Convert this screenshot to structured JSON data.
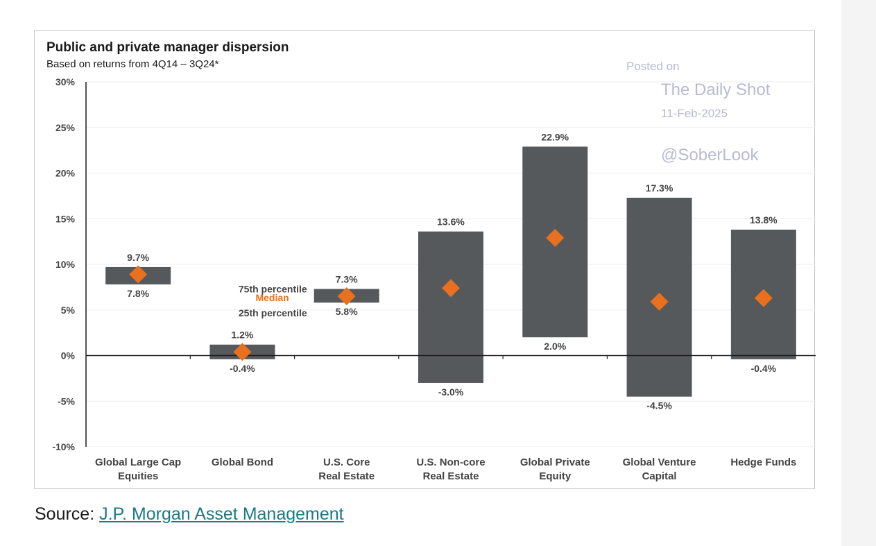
{
  "chart_data": {
    "type": "floating-bar",
    "title": "Public and private manager dispersion",
    "subtitle": "Based on returns from 4Q14 – 3Q24*",
    "ylim": [
      -10,
      30
    ],
    "yticks": [
      30,
      25,
      20,
      15,
      10,
      5,
      0,
      -5,
      -10
    ],
    "ytick_labels": [
      "30%",
      "25%",
      "20%",
      "15%",
      "10%",
      "5%",
      "0%",
      "-5%",
      "-10%"
    ],
    "grid": true,
    "categories": [
      [
        "Global Large Cap",
        "Equities"
      ],
      [
        "Global Bond"
      ],
      [
        "U.S. Core",
        "Real Estate"
      ],
      [
        "U.S. Non-core",
        "Real Estate"
      ],
      [
        "Global Private",
        "Equity"
      ],
      [
        "Global Venture",
        "Capital"
      ],
      [
        "Hedge Funds"
      ]
    ],
    "p75": [
      9.7,
      1.2,
      7.3,
      13.6,
      22.9,
      17.3,
      13.8
    ],
    "p25": [
      7.8,
      -0.4,
      5.8,
      -3.0,
      2.0,
      -4.5,
      -0.4
    ],
    "p75_labels": [
      "9.7%",
      "1.2%",
      "7.3%",
      "13.6%",
      "22.9%",
      "17.3%",
      "13.8%"
    ],
    "p25_labels": [
      "7.8%",
      "-0.4%",
      "5.8%",
      "-3.0%",
      "2.0%",
      "-4.5%",
      "-0.4%"
    ],
    "median": [
      8.9,
      0.4,
      6.5,
      7.4,
      12.9,
      5.9,
      6.3
    ],
    "legend": {
      "top": "75th percentile",
      "middle": "Median",
      "bottom": "25th percentile"
    },
    "colors": {
      "bar": "#55595c",
      "median": "#e8701e",
      "axis": "#1a1a1a",
      "grid": "#eeeeee",
      "label": "#444444"
    }
  },
  "watermark": {
    "posted": "Posted on",
    "name": "The Daily Shot",
    "date": "11-Feb-2025",
    "handle": "@SoberLook"
  },
  "source": {
    "prefix": "Source: ",
    "link_text": "J.P. Morgan Asset Management"
  }
}
